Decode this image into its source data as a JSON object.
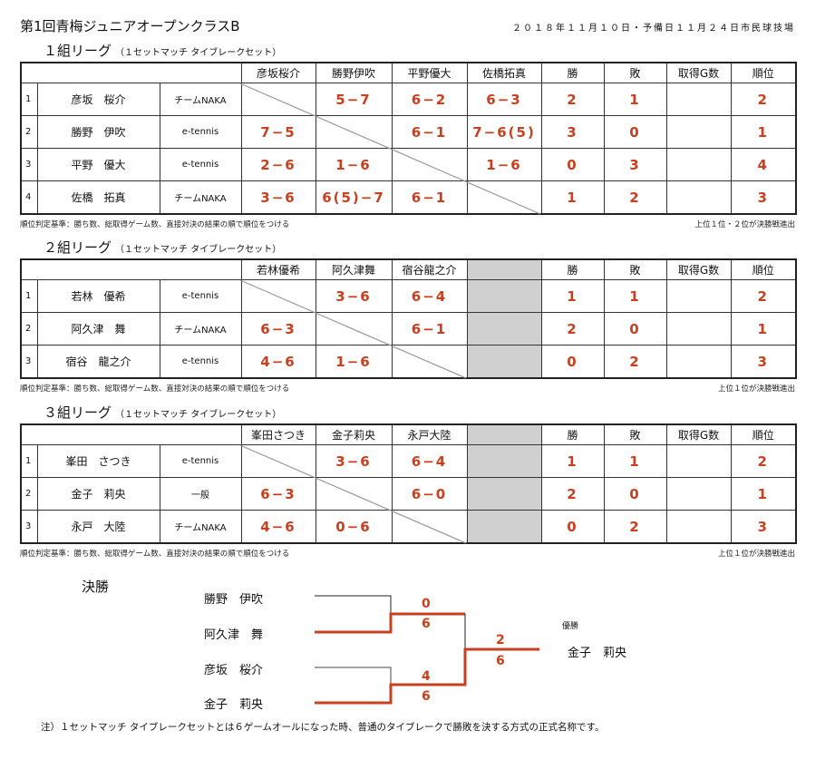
{
  "header": {
    "title": "第1回青梅ジュニアオープンクラスB",
    "date": "２０１８年１１月１０日・予備日１１月２４日市民球技場"
  },
  "stat_headers": [
    "勝",
    "敗",
    "取得G数",
    "順位"
  ],
  "score_color": "#c8401f",
  "leagues": [
    {
      "title": "１組リーグ",
      "subtitle": "（１セットマッチ タイブレークセット）",
      "opponents": [
        "彦坂桜介",
        "勝野伊吹",
        "平野優大",
        "佐橋拓真"
      ],
      "rows": [
        {
          "no": "1",
          "name": "彦坂　桜介",
          "team": "チームNAKA",
          "scores": [
            "",
            "5−7",
            "6−2",
            "6−3"
          ],
          "win": "2",
          "loss": "1",
          "games": "",
          "rank": "2"
        },
        {
          "no": "2",
          "name": "勝野　伊吹",
          "team": "e-tennis",
          "scores": [
            "7−5",
            "",
            "6−1",
            "7−6(5)"
          ],
          "win": "3",
          "loss": "0",
          "games": "",
          "rank": "1"
        },
        {
          "no": "3",
          "name": "平野　優大",
          "team": "e-tennis",
          "scores": [
            "2−6",
            "1−6",
            "",
            "1−6"
          ],
          "win": "0",
          "loss": "3",
          "games": "",
          "rank": "4"
        },
        {
          "no": "4",
          "name": "佐橋　拓真",
          "team": "チームNAKA",
          "scores": [
            "3−6",
            "6(5)−7",
            "6−1",
            ""
          ],
          "win": "1",
          "loss": "2",
          "games": "",
          "rank": "3"
        }
      ],
      "note_left": "順位判定基準：勝ち数、総取得ゲーム数、直接対決の結果の順で順位をつける",
      "note_right": "上位１位・２位が決勝戦進出"
    },
    {
      "title": "２組リーグ",
      "subtitle": "（１セットマッチ タイブレークセット）",
      "opponents": [
        "若林優希",
        "阿久津舞",
        "宿谷龍之介"
      ],
      "rows": [
        {
          "no": "1",
          "name": "若林　優希",
          "team": "e-tennis",
          "scores": [
            "",
            "3−6",
            "6−4"
          ],
          "win": "1",
          "loss": "1",
          "games": "",
          "rank": "2"
        },
        {
          "no": "2",
          "name": "阿久津　舞",
          "team": "チームNAKA",
          "scores": [
            "6−3",
            "",
            "6−1"
          ],
          "win": "2",
          "loss": "0",
          "games": "",
          "rank": "1"
        },
        {
          "no": "3",
          "name": "宿谷　龍之介",
          "team": "e-tennis",
          "scores": [
            "4−6",
            "1−6",
            ""
          ],
          "win": "0",
          "loss": "2",
          "games": "",
          "rank": "3"
        }
      ],
      "note_left": "順位判定基準：勝ち数、総取得ゲーム数、直接対決の結果の順で順位をつける",
      "note_right": "上位１位が決勝戦進出"
    },
    {
      "title": "３組リーグ",
      "subtitle": "（１セットマッチ タイブレークセット）",
      "opponents": [
        "峯田さつき",
        "金子莉央",
        "永戸大陸"
      ],
      "rows": [
        {
          "no": "1",
          "name": "峯田　さつき",
          "team": "e-tennis",
          "scores": [
            "",
            "3−6",
            "6−4"
          ],
          "win": "1",
          "loss": "1",
          "games": "",
          "rank": "2"
        },
        {
          "no": "2",
          "name": "金子　莉央",
          "team": "一般",
          "scores": [
            "6−3",
            "",
            "6−0"
          ],
          "win": "2",
          "loss": "0",
          "games": "",
          "rank": "1"
        },
        {
          "no": "3",
          "name": "永戸　大陸",
          "team": "チームNAKA",
          "scores": [
            "4−6",
            "0−6",
            ""
          ],
          "win": "0",
          "loss": "2",
          "games": "",
          "rank": "3"
        }
      ],
      "note_left": "順位判定基準：勝ち数、総取得ゲーム数、直接対決の結果の順で順位をつける",
      "note_right": "上位１位が決勝戦進出"
    }
  ],
  "final": {
    "title": "決勝",
    "players": [
      "勝野　伊吹",
      "阿久津　舞",
      "彦坂　桜介",
      "金子　莉央"
    ],
    "semi1_scores": [
      "0",
      "6"
    ],
    "semi2_scores": [
      "4",
      "6"
    ],
    "final_scores": [
      "2",
      "6"
    ],
    "champion_label": "優勝",
    "champion": "金子　莉央"
  },
  "footnote": "注）１セットマッチ タイブレークセットとは６ゲームオールになった時、普通のタイブレークで勝敗を決する方式の正式名称です。"
}
